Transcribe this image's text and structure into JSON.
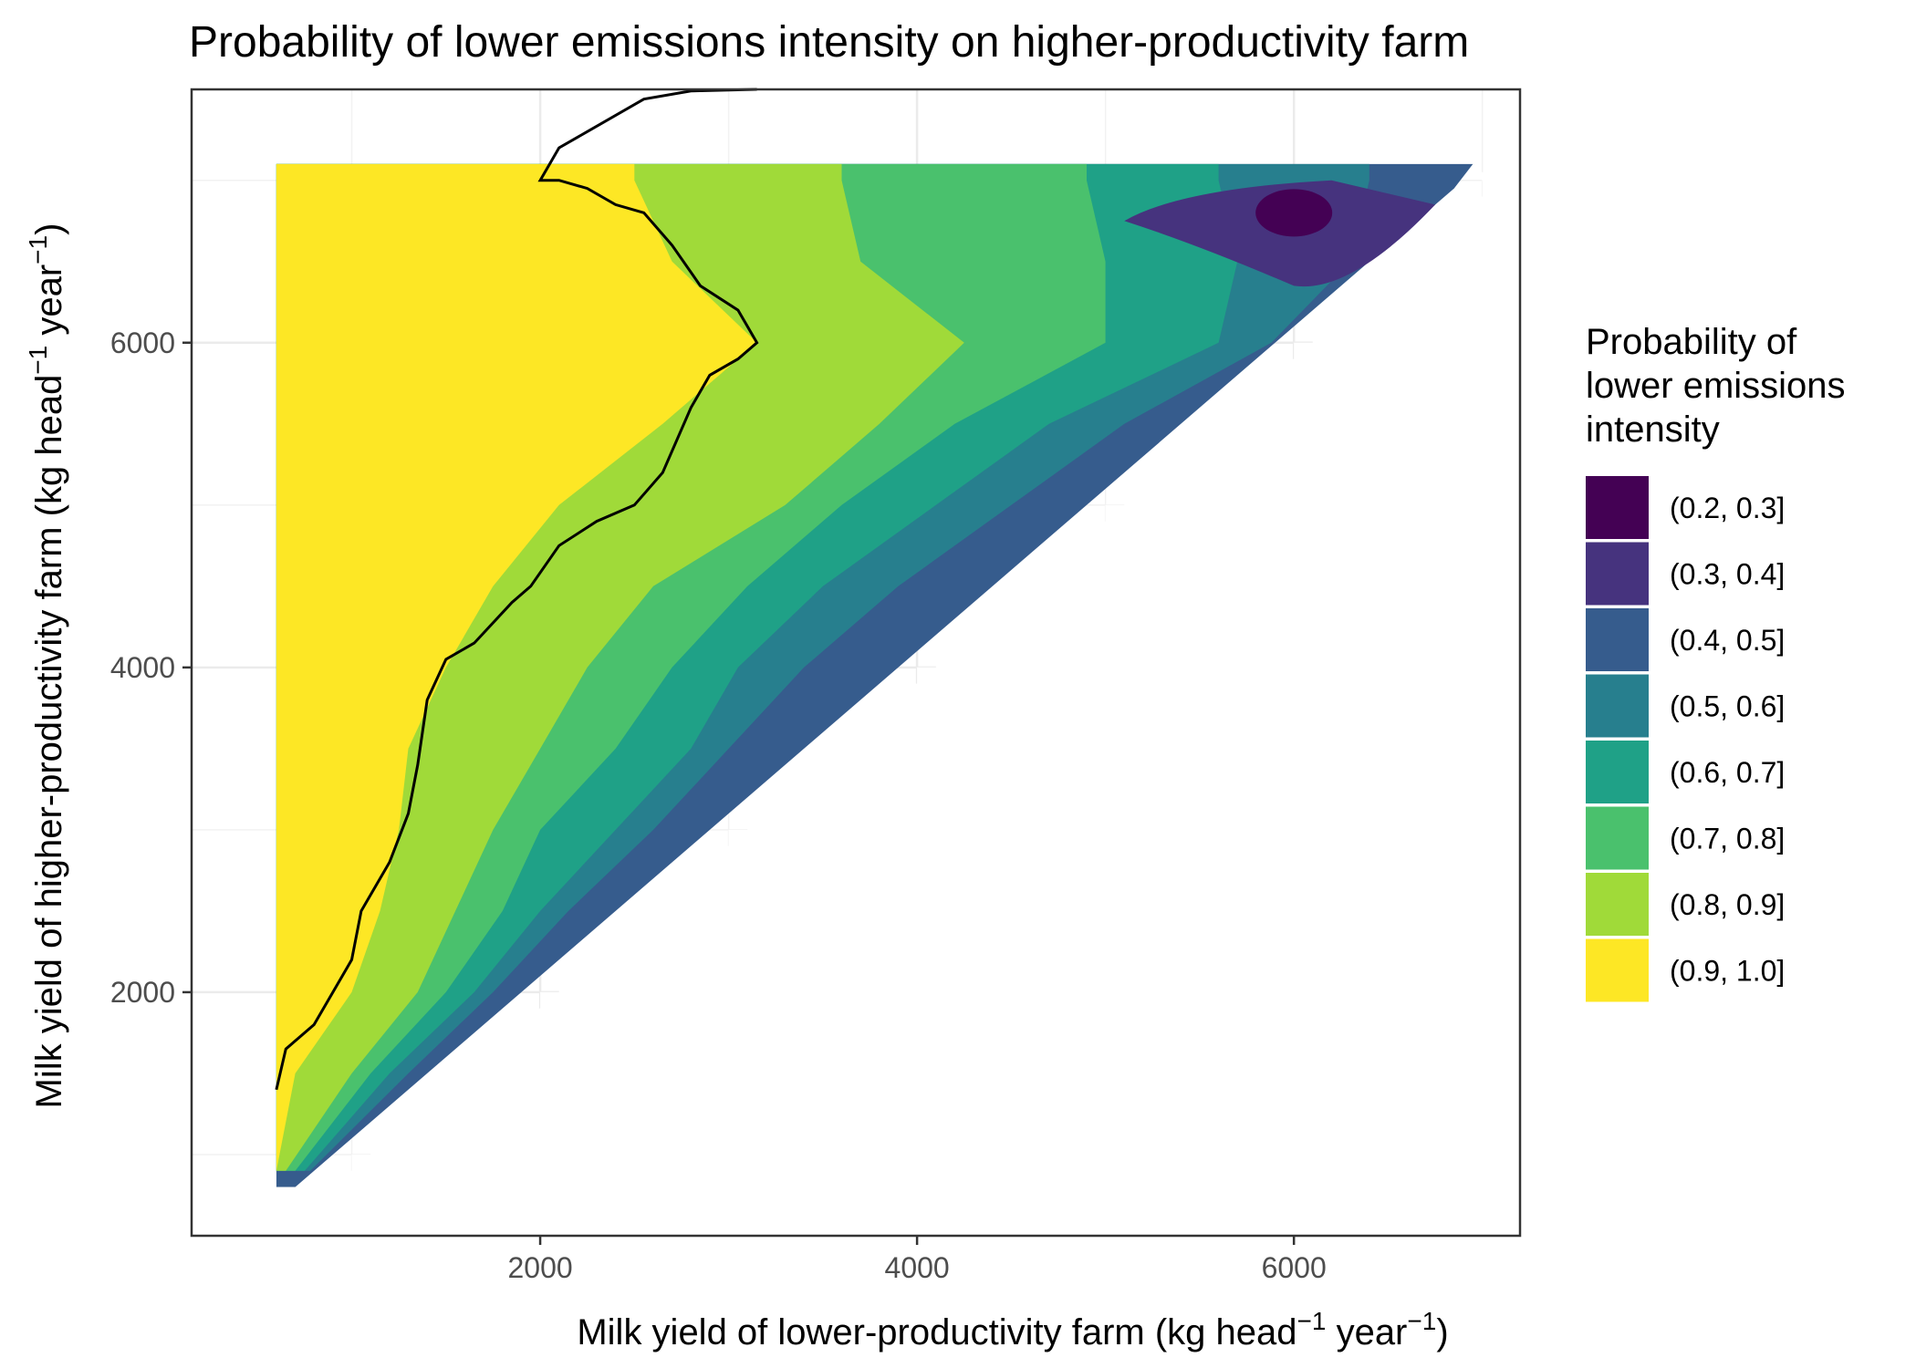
{
  "chart_data": {
    "type": "heatmap",
    "title": "Probability of lower emissions intensity on higher-productivity farm",
    "xlabel": {
      "text": "Milk yield of lower-productivity farm (kg head",
      "sup1": "−1",
      "mid": " year",
      "sup2": "−1",
      "end": ")"
    },
    "ylabel": {
      "text": "Milk yield of higher-productivity farm (kg head",
      "sup1": "−1",
      "mid": " year",
      "sup2": "−1",
      "end": ")"
    },
    "xlim": [
      150,
      7200
    ],
    "ylim": [
      500,
      7560
    ],
    "x_ticks": [
      2000,
      4000,
      6000
    ],
    "y_ticks": [
      2000,
      4000,
      6000
    ],
    "x_tick_labels": [
      "2000",
      "4000",
      "6000"
    ],
    "y_tick_labels": [
      "2000",
      "4000",
      "6000"
    ],
    "grid": true,
    "legend_position": "right",
    "legend_title": [
      "Probability of",
      "lower emissions",
      "intensity"
    ],
    "bins": [
      {
        "label": "(0.2, 0.3]",
        "color": "#440154"
      },
      {
        "label": "(0.3, 0.4]",
        "color": "#46337E"
      },
      {
        "label": "(0.4, 0.5]",
        "color": "#365C8D"
      },
      {
        "label": "(0.5, 0.6]",
        "color": "#277F8E"
      },
      {
        "label": "(0.6, 0.7]",
        "color": "#1FA187"
      },
      {
        "label": "(0.7, 0.8]",
        "color": "#4AC16D"
      },
      {
        "label": "(0.8, 0.9]",
        "color": "#A0DA39"
      },
      {
        "label": "(0.9, 1.0]",
        "color": "#FDE725"
      }
    ],
    "region_boundaries": {
      "note_x_by_y": "For each band, the x position (kg/head/yr) where the probability band ends, sampled at y values",
      "y_samples": [
        900,
        1500,
        2000,
        2500,
        3000,
        3500,
        4000,
        4500,
        5000,
        5500,
        6000,
        6500,
        7000
      ],
      "yellow_edge_x": [
        600,
        700,
        1000,
        1150,
        1250,
        1300,
        1500,
        1750,
        2100,
        2650,
        3150,
        2700,
        2500
      ],
      "green_light_edge_x": [
        650,
        1000,
        1350,
        1550,
        1750,
        2000,
        2250,
        2600,
        3300,
        3800,
        4250,
        3700,
        3600
      ],
      "green_edge_x": [
        700,
        1100,
        1500,
        1800,
        2000,
        2400,
        2700,
        3100,
        3600,
        4200,
        5000,
        5000,
        4900
      ],
      "teal_edge_x": [
        750,
        1200,
        1650,
        2000,
        2400,
        2800,
        3050,
        3500,
        4100,
        4700,
        5600,
        5700,
        5600
      ],
      "dark_teal_edge_x": [
        800,
        1300,
        1750,
        2150,
        2600,
        3000,
        3400,
        3900,
        4500,
        5100,
        6000,
        6300,
        6400
      ]
    },
    "boundary_contour": {
      "level": 0.9,
      "points": [
        [
          600,
          1400
        ],
        [
          650,
          1650
        ],
        [
          800,
          1800
        ],
        [
          900,
          2000
        ],
        [
          1000,
          2200
        ],
        [
          1050,
          2500
        ],
        [
          1200,
          2800
        ],
        [
          1300,
          3100
        ],
        [
          1350,
          3400
        ],
        [
          1400,
          3800
        ],
        [
          1500,
          4050
        ],
        [
          1650,
          4150
        ],
        [
          1850,
          4400
        ],
        [
          1950,
          4500
        ],
        [
          2100,
          4750
        ],
        [
          2300,
          4900
        ],
        [
          2500,
          5000
        ],
        [
          2650,
          5200
        ],
        [
          2800,
          5600
        ],
        [
          2900,
          5800
        ],
        [
          3050,
          5900
        ],
        [
          3150,
          6000
        ],
        [
          3050,
          6200
        ],
        [
          2850,
          6350
        ],
        [
          2700,
          6600
        ],
        [
          2550,
          6800
        ],
        [
          2400,
          6850
        ],
        [
          2250,
          6950
        ],
        [
          2100,
          7000
        ],
        [
          2000,
          7000
        ],
        [
          2100,
          7200
        ],
        [
          2250,
          7300
        ],
        [
          2550,
          7500
        ],
        [
          2800,
          7550
        ],
        [
          3150,
          7560
        ]
      ]
    },
    "minimum_region": {
      "label": "(0.2, 0.3]",
      "center": [
        6000,
        6800
      ]
    }
  }
}
